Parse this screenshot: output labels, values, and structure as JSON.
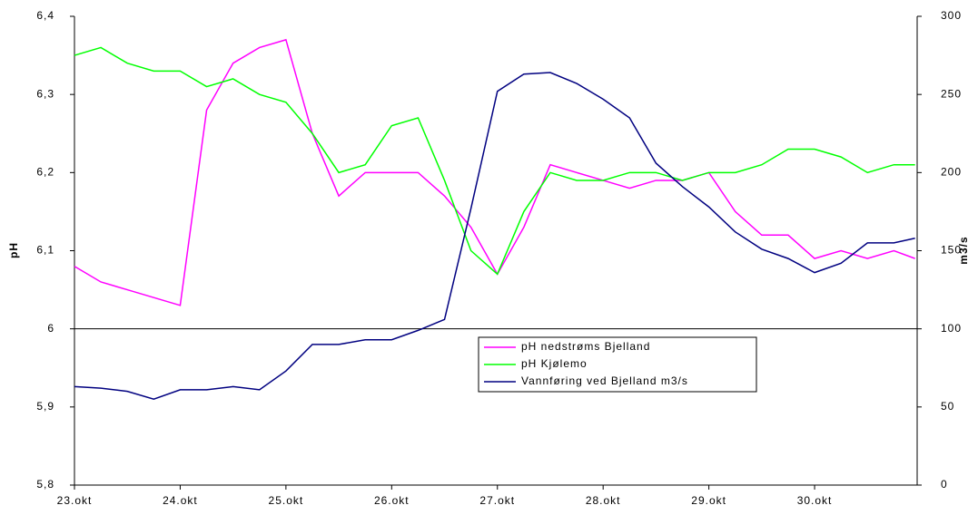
{
  "chart_data": {
    "type": "line",
    "y_label": "pH",
    "y2_label": "m3/s",
    "x": [
      23.0,
      23.25,
      23.5,
      23.75,
      24.0,
      24.25,
      24.5,
      24.75,
      25.0,
      25.25,
      25.5,
      25.75,
      26.0,
      26.25,
      26.5,
      26.75,
      27.0,
      27.25,
      27.5,
      27.75,
      28.0,
      28.25,
      28.5,
      28.75,
      29.0,
      29.25,
      29.5,
      29.75,
      30.0,
      30.25,
      30.5,
      30.75,
      30.95
    ],
    "xlim": [
      23,
      30.97
    ],
    "xticks": [
      {
        "value": 23,
        "label": "23.okt"
      },
      {
        "value": 24,
        "label": "24.okt"
      },
      {
        "value": 25,
        "label": "25.okt"
      },
      {
        "value": 26,
        "label": "26.okt"
      },
      {
        "value": 27,
        "label": "27.okt"
      },
      {
        "value": 28,
        "label": "28.okt"
      },
      {
        "value": 29,
        "label": "29.okt"
      },
      {
        "value": 30,
        "label": "30.okt"
      }
    ],
    "ylim": [
      5.8,
      6.4
    ],
    "yticks": [
      {
        "value": 5.8,
        "label": "5,8"
      },
      {
        "value": 5.9,
        "label": "5,9"
      },
      6,
      {
        "value": 6.1,
        "label": "6,1"
      },
      {
        "value": 6.2,
        "label": "6,2"
      },
      {
        "value": 6.3,
        "label": "6,3"
      },
      {
        "value": 6.4,
        "label": "6,4"
      }
    ],
    "y2lim": [
      0,
      300
    ],
    "y2ticks": [
      0,
      50,
      100,
      150,
      200,
      250,
      300
    ],
    "hline": 6,
    "series": [
      {
        "name": "pH nedstrøms Bjelland",
        "color": "#ff00ff",
        "values": [
          6.08,
          6.06,
          6.05,
          6.04,
          6.03,
          6.28,
          6.34,
          6.36,
          6.37,
          6.25,
          6.17,
          6.2,
          6.2,
          6.2,
          6.17,
          6.13,
          6.07,
          6.13,
          6.21,
          6.2,
          6.19,
          6.18,
          6.19,
          6.19,
          6.2,
          6.15,
          6.12,
          6.12,
          6.09,
          6.1,
          6.09,
          6.1,
          6.09
        ]
      },
      {
        "name": "pH Kjølemo",
        "color": "#00ff00",
        "values": [
          6.35,
          6.36,
          6.34,
          6.33,
          6.33,
          6.31,
          6.32,
          6.3,
          6.29,
          6.25,
          6.2,
          6.21,
          6.26,
          6.27,
          6.19,
          6.1,
          6.07,
          6.15,
          6.2,
          6.19,
          6.19,
          6.2,
          6.2,
          6.19,
          6.2,
          6.2,
          6.21,
          6.23,
          6.23,
          6.22,
          6.2,
          6.21,
          6.21
        ]
      },
      {
        "name": "Vannføring ved Bjelland m3/s",
        "color": "#000080",
        "axis": "y2",
        "values": [
          63,
          62,
          60,
          55,
          61,
          61,
          63,
          61,
          73,
          90,
          90,
          93,
          93,
          99,
          106,
          177,
          252,
          263,
          264,
          257,
          247,
          235,
          206,
          191,
          178,
          162,
          151,
          145,
          136,
          142,
          155,
          155,
          158
        ]
      }
    ]
  }
}
